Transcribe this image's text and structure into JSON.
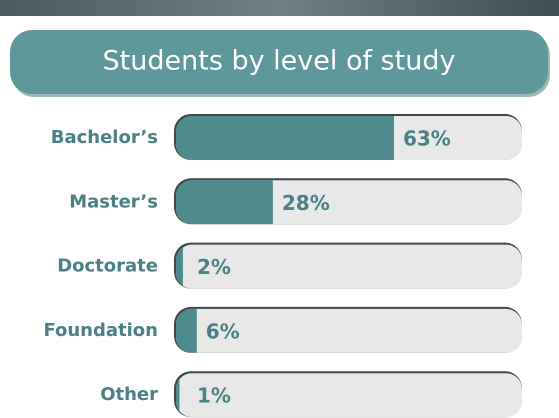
{
  "chart_data": {
    "type": "bar",
    "orientation": "horizontal",
    "title": "Students by level of study",
    "categories": [
      "Bachelor’s",
      "Master’s",
      "Doctorate",
      "Foundation",
      "Other"
    ],
    "values": [
      63,
      28,
      2,
      6,
      1
    ],
    "value_labels": [
      "63%",
      "28%",
      "2%",
      "6%",
      "1%"
    ],
    "xlim": [
      0,
      100
    ],
    "color": "#4f8a8d"
  }
}
